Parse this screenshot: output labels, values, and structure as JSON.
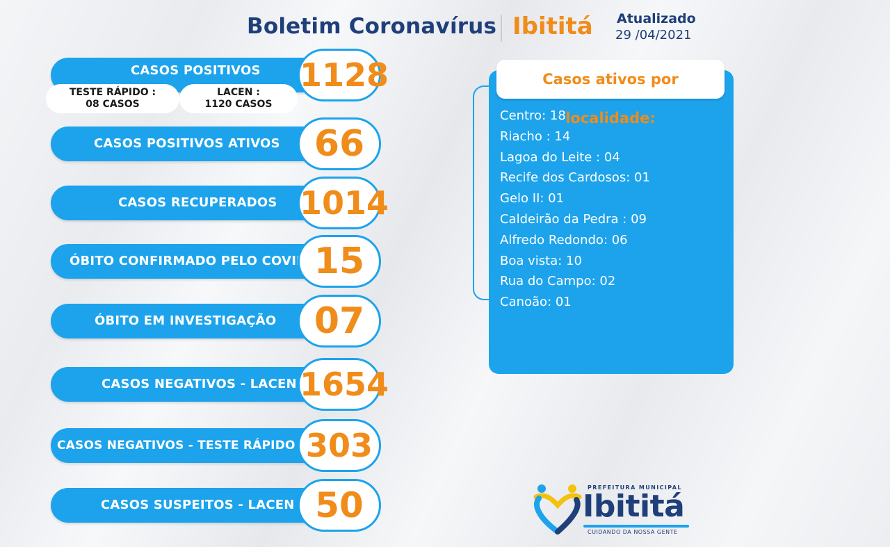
{
  "header": {
    "title": "Boletim Coronavírus",
    "city": "Ibititá",
    "updated_label": "Atualizado",
    "updated_date": "29 /04/2021"
  },
  "stats": [
    {
      "label": "CASOS  POSITIVOS",
      "value": "1128"
    },
    {
      "label": "CASOS POSITIVOS ATIVOS",
      "value": "66"
    },
    {
      "label": "CASOS RECUPERADOS",
      "value": "1014"
    },
    {
      "label": "ÓBITO CONFIRMADO PELO COVID",
      "value": "15"
    },
    {
      "label": "ÓBITO EM INVESTIGAÇÃO",
      "value": "07"
    },
    {
      "label": "CASOS NEGATIVOS - LACEN",
      "value": "1654"
    },
    {
      "label": "CASOS NEGATIVOS - TESTE RÁPIDO",
      "value": "303"
    },
    {
      "label": "CASOS SUSPEITOS - LACEN",
      "value": "50"
    }
  ],
  "positive_breakdown": {
    "rapid_test_label": "TESTE RÁPIDO :",
    "rapid_test_value": "08 CASOS",
    "lacen_label": "LACEN :",
    "lacen_value": "1120 CASOS"
  },
  "localities": {
    "title": "Casos ativos por localidade:",
    "items": [
      "Centro: 18",
      "Riacho : 14",
      "Lagoa do Leite : 04",
      "Recife dos Cardosos: 01",
      "Gelo II: 01",
      "Caldeirão da Pedra : 09",
      "Alfredo Redondo: 06",
      "Boa vista: 10",
      "Rua do Campo: 02",
      "Canoão: 01"
    ]
  },
  "logo": {
    "top_text": "PREFEITURA MUNICIPAL",
    "name": "Ibititá",
    "tagline": "CUIDANDO DA NOSSA GENTE"
  },
  "colors": {
    "brand_blue": "#1ca3ec",
    "navy": "#1f3f7a",
    "orange": "#f08c1a"
  }
}
